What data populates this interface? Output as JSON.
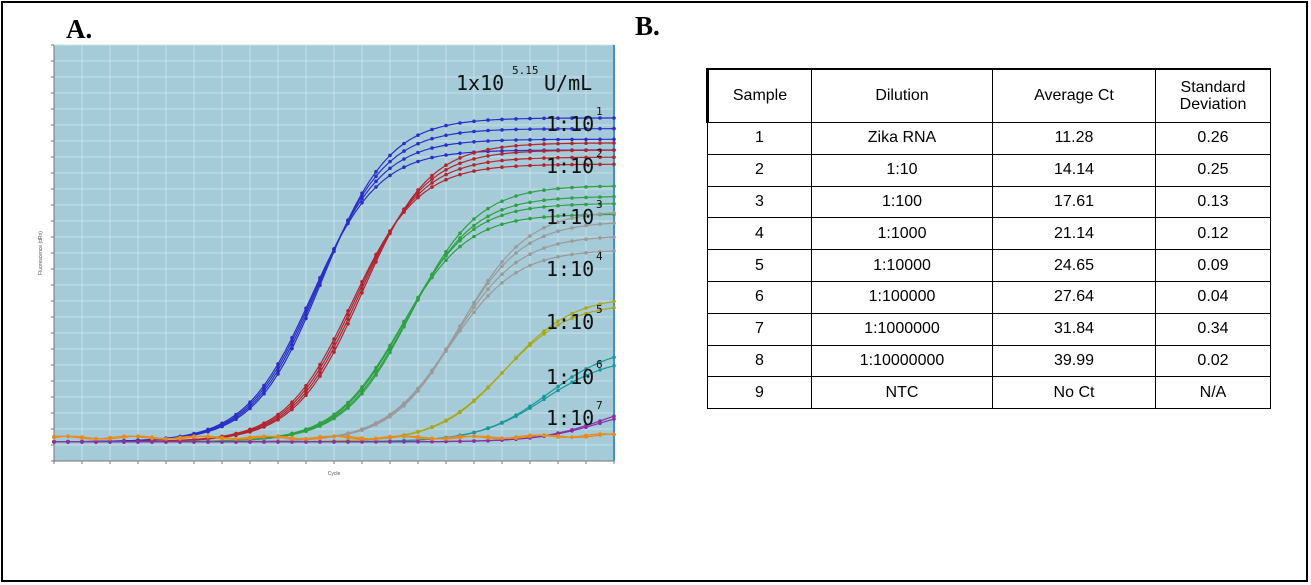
{
  "panels": {
    "a_label": "A.",
    "b_label": "B."
  },
  "colors": {
    "plot_bg": "#a6cbd8",
    "grid": "#c4e0e8",
    "series": [
      "#2a2fc7",
      "#b3242e",
      "#2fa043",
      "#9a9a9a",
      "#a8a818",
      "#17999a",
      "#8b2da6",
      "#e98a1a"
    ]
  },
  "chart_data": {
    "type": "line",
    "title": "",
    "xlabel": "Cycle",
    "ylabel": "Fluorescence (dRn)",
    "xlim": [
      0,
      40
    ],
    "ylim": [
      0,
      1
    ],
    "grid": true,
    "annotations": [
      {
        "base": "1x10",
        "exponent": "5.15",
        "unit": "U/mL"
      },
      {
        "base": "1:10",
        "exponent": "1"
      },
      {
        "base": "1:10",
        "exponent": "2"
      },
      {
        "base": "1:10",
        "exponent": "3"
      },
      {
        "base": "1:10",
        "exponent": "4"
      },
      {
        "base": "1:10",
        "exponent": "5"
      },
      {
        "base": "1:10",
        "exponent": "6"
      },
      {
        "base": "1:10",
        "exponent": "7"
      }
    ],
    "series": [
      {
        "color_index": 0,
        "ct": 11.28,
        "plateau": [
          0.84,
          0.87,
          0.9,
          0.93
        ]
      },
      {
        "color_index": 1,
        "ct": 14.14,
        "plateau": [
          0.8,
          0.82,
          0.84,
          0.86
        ]
      },
      {
        "color_index": 2,
        "ct": 17.61,
        "plateau": [
          0.66,
          0.69,
          0.71,
          0.74
        ]
      },
      {
        "color_index": 3,
        "ct": 21.14,
        "plateau": [
          0.56,
          0.6,
          0.64,
          0.67
        ]
      },
      {
        "color_index": 4,
        "ct": 24.65,
        "plateau": [
          0.41,
          0.43
        ]
      },
      {
        "color_index": 5,
        "ct": 27.64,
        "plateau": [
          0.26,
          0.29
        ]
      },
      {
        "color_index": 6,
        "ct": 31.84,
        "plateau": [
          0.13,
          0.15
        ]
      },
      {
        "color_index": 7,
        "ct": 39.99,
        "plateau": [
          0.05,
          0.055
        ]
      }
    ]
  },
  "table": {
    "headers": [
      "Sample",
      "Dilution",
      "Average Ct",
      "Standard Deviation"
    ],
    "rows": [
      [
        "1",
        "Zika RNA",
        "11.28",
        "0.26"
      ],
      [
        "2",
        "1:10",
        "14.14",
        "0.25"
      ],
      [
        "3",
        "1:100",
        "17.61",
        "0.13"
      ],
      [
        "4",
        "1:1000",
        "21.14",
        "0.12"
      ],
      [
        "5",
        "1:10000",
        "24.65",
        "0.09"
      ],
      [
        "6",
        "1:100000",
        "27.64",
        "0.04"
      ],
      [
        "7",
        "1:1000000",
        "31.84",
        "0.34"
      ],
      [
        "8",
        "1:10000000",
        "39.99",
        "0.02"
      ],
      [
        "9",
        "NTC",
        "No Ct",
        "N/A"
      ]
    ]
  }
}
